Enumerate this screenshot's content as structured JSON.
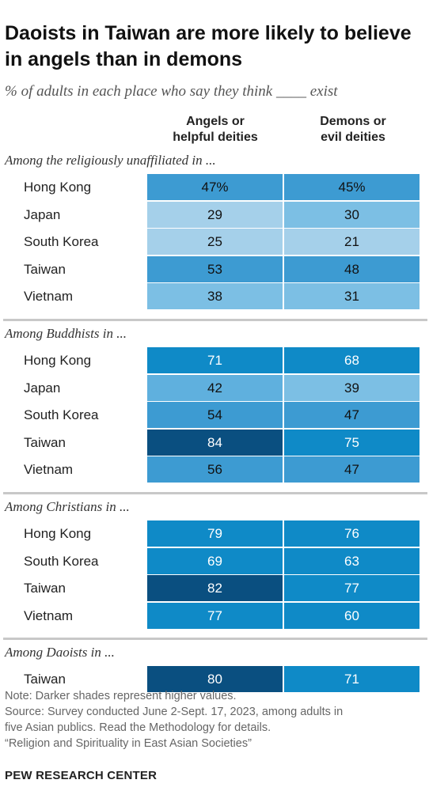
{
  "title": "Daoists in Taiwan are more likely to believe in angels than in demons",
  "subtitle": "% of adults in each place who say they think ____ exist",
  "chart_data": {
    "type": "table",
    "columns": [
      "Angels or\nhelpful deities",
      "Demons or\nevil deities"
    ],
    "groups": [
      {
        "title": "Among the religiously unaffiliated in ...",
        "rows": [
          {
            "label": "Hong Kong",
            "values": [
              47,
              45
            ],
            "display": [
              "47%",
              "45%"
            ]
          },
          {
            "label": "Japan",
            "values": [
              29,
              30
            ],
            "display": [
              "29",
              "30"
            ]
          },
          {
            "label": "South Korea",
            "values": [
              25,
              21
            ],
            "display": [
              "25",
              "21"
            ]
          },
          {
            "label": "Taiwan",
            "values": [
              53,
              48
            ],
            "display": [
              "53",
              "48"
            ]
          },
          {
            "label": "Vietnam",
            "values": [
              38,
              31
            ],
            "display": [
              "38",
              "31"
            ]
          }
        ]
      },
      {
        "title": "Among Buddhists in ...",
        "rows": [
          {
            "label": "Hong Kong",
            "values": [
              71,
              68
            ],
            "display": [
              "71",
              "68"
            ]
          },
          {
            "label": "Japan",
            "values": [
              42,
              39
            ],
            "display": [
              "42",
              "39"
            ]
          },
          {
            "label": "South Korea",
            "values": [
              54,
              47
            ],
            "display": [
              "54",
              "47"
            ]
          },
          {
            "label": "Taiwan",
            "values": [
              84,
              75
            ],
            "display": [
              "84",
              "75"
            ]
          },
          {
            "label": "Vietnam",
            "values": [
              56,
              47
            ],
            "display": [
              "56",
              "47"
            ]
          }
        ]
      },
      {
        "title": "Among Christians in ...",
        "rows": [
          {
            "label": "Hong Kong",
            "values": [
              79,
              76
            ],
            "display": [
              "79",
              "76"
            ]
          },
          {
            "label": "South Korea",
            "values": [
              69,
              63
            ],
            "display": [
              "69",
              "63"
            ]
          },
          {
            "label": "Taiwan",
            "values": [
              82,
              77
            ],
            "display": [
              "82",
              "77"
            ]
          },
          {
            "label": "Vietnam",
            "values": [
              77,
              60
            ],
            "display": [
              "77",
              "60"
            ]
          }
        ]
      },
      {
        "title": "Among Daoists in ...",
        "rows": [
          {
            "label": "Taiwan",
            "values": [
              80,
              71
            ],
            "display": [
              "80",
              "71"
            ]
          }
        ]
      }
    ],
    "color_scale": {
      "light": "#a5d0ea",
      "mid_light": "#7cbfe4",
      "mid": "#5fb0de",
      "strong": "#3d9bd2",
      "deep": "#0f8ac7",
      "darkest": "#0a4f80"
    }
  },
  "notes": {
    "note": "Note: Darker shades represent higher values.",
    "source": "Source: Survey conducted June 2-Sept. 17, 2023, among adults in\nfive Asian publics. Read the Methodology for details.",
    "report": "“Religion and Spirituality in East Asian Societies”"
  },
  "footer": "PEW RESEARCH CENTER"
}
